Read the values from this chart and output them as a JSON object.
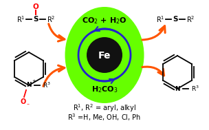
{
  "bg_color": "#ffffff",
  "ellipse_color": "#66ff00",
  "circle_color": "#111111",
  "fe_text": "Fe",
  "fe_color": "#ffffff",
  "top_text": "CO$_2$ + H$_2$O",
  "bottom_text": "H$_2$CO$_3$",
  "arrow_color_blue": "#2222cc",
  "arrow_color_orange": "#ff5500",
  "caption1": "R$^1$, R$^2$ = aryl, alkyl",
  "caption2": "R$^3$ =H, Me, OH, Cl, Ph",
  "figw": 3.04,
  "figh": 1.89
}
